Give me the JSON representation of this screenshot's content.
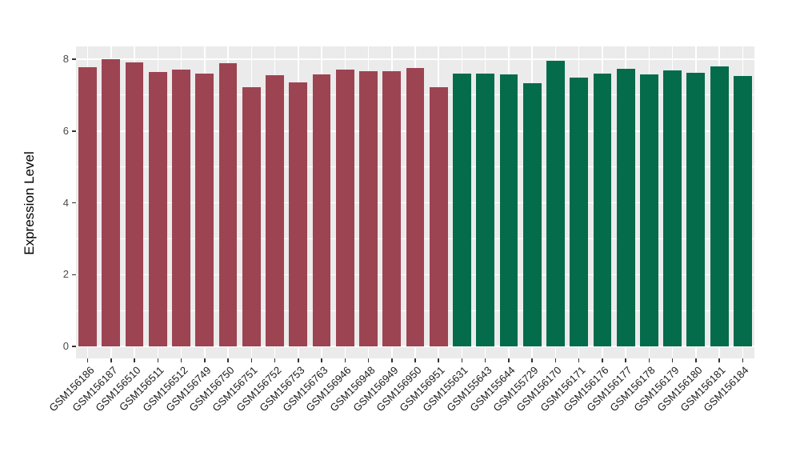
{
  "chart_data": {
    "type": "bar",
    "title": "",
    "xlabel": "",
    "ylabel": "Expression Level",
    "ylim": [
      0,
      8.36
    ],
    "grid": true,
    "legend": "none",
    "panel_background": "#EBEBEB",
    "gridline_color": "#FFFFFF",
    "tick_color": "#333333",
    "y_axis": {
      "major_ticks": [
        0,
        2,
        4,
        6,
        8
      ],
      "minor_gridlines": [
        1,
        3,
        5,
        7
      ]
    },
    "groups": {
      "group1": {
        "color": "#9D4452"
      },
      "group2": {
        "color": "#046B4B"
      }
    },
    "bars": [
      {
        "label": "GSM156186",
        "value": 7.78,
        "group": "group1"
      },
      {
        "label": "GSM156187",
        "value": 7.99,
        "group": "group1"
      },
      {
        "label": "GSM156510",
        "value": 7.9,
        "group": "group1"
      },
      {
        "label": "GSM156511",
        "value": 7.64,
        "group": "group1"
      },
      {
        "label": "GSM156512",
        "value": 7.72,
        "group": "group1"
      },
      {
        "label": "GSM156749",
        "value": 7.59,
        "group": "group1"
      },
      {
        "label": "GSM156750",
        "value": 7.89,
        "group": "group1"
      },
      {
        "label": "GSM156751",
        "value": 7.21,
        "group": "group1"
      },
      {
        "label": "GSM156752",
        "value": 7.55,
        "group": "group1"
      },
      {
        "label": "GSM156753",
        "value": 7.36,
        "group": "group1"
      },
      {
        "label": "GSM156763",
        "value": 7.57,
        "group": "group1"
      },
      {
        "label": "GSM156946",
        "value": 7.71,
        "group": "group1"
      },
      {
        "label": "GSM156948",
        "value": 7.67,
        "group": "group1"
      },
      {
        "label": "GSM156949",
        "value": 7.67,
        "group": "group1"
      },
      {
        "label": "GSM156950",
        "value": 7.76,
        "group": "group1"
      },
      {
        "label": "GSM156951",
        "value": 7.23,
        "group": "group1"
      },
      {
        "label": "GSM155631",
        "value": 7.6,
        "group": "group2"
      },
      {
        "label": "GSM155643",
        "value": 7.61,
        "group": "group2"
      },
      {
        "label": "GSM155644",
        "value": 7.58,
        "group": "group2"
      },
      {
        "label": "GSM155729",
        "value": 7.33,
        "group": "group2"
      },
      {
        "label": "GSM156170",
        "value": 7.95,
        "group": "group2"
      },
      {
        "label": "GSM156171",
        "value": 7.48,
        "group": "group2"
      },
      {
        "label": "GSM156176",
        "value": 7.6,
        "group": "group2"
      },
      {
        "label": "GSM156177",
        "value": 7.74,
        "group": "group2"
      },
      {
        "label": "GSM156178",
        "value": 7.58,
        "group": "group2"
      },
      {
        "label": "GSM156179",
        "value": 7.69,
        "group": "group2"
      },
      {
        "label": "GSM156180",
        "value": 7.63,
        "group": "group2"
      },
      {
        "label": "GSM156181",
        "value": 7.81,
        "group": "group2"
      },
      {
        "label": "GSM156184",
        "value": 7.54,
        "group": "group2"
      }
    ]
  }
}
